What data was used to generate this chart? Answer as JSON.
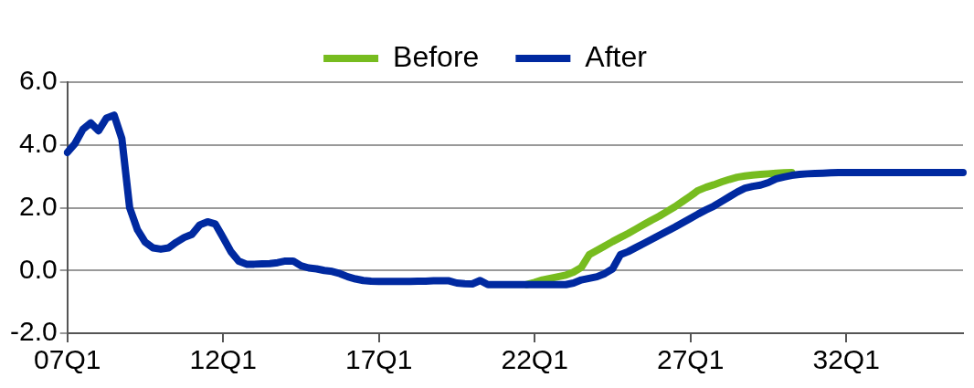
{
  "chart_data": {
    "type": "line",
    "categories": [
      "07Q1",
      null,
      null,
      null,
      null,
      null,
      null,
      null,
      null,
      null,
      null,
      null,
      null,
      null,
      null,
      null,
      null,
      null,
      null,
      null,
      "12Q1",
      null,
      null,
      null,
      null,
      null,
      null,
      null,
      null,
      null,
      null,
      null,
      null,
      null,
      null,
      null,
      null,
      null,
      null,
      null,
      "17Q1",
      null,
      null,
      null,
      null,
      null,
      null,
      null,
      null,
      null,
      null,
      null,
      null,
      null,
      null,
      null,
      null,
      null,
      null,
      null,
      "22Q1",
      null,
      null,
      null,
      null,
      null,
      null,
      null,
      null,
      null,
      null,
      null,
      null,
      null,
      null,
      null,
      null,
      null,
      null,
      null,
      "27Q1",
      null,
      null,
      null,
      null,
      null,
      null,
      null,
      null,
      null,
      null,
      null,
      null,
      null,
      null,
      null,
      null,
      null,
      null,
      null,
      "32Q1",
      null,
      null,
      null,
      null,
      null,
      null,
      null,
      null,
      null,
      null,
      null,
      null,
      null,
      null,
      null
    ],
    "series": [
      {
        "name": "Before",
        "color": "#77bc1f",
        "values": [
          null,
          null,
          null,
          null,
          null,
          null,
          null,
          null,
          null,
          null,
          null,
          null,
          null,
          null,
          null,
          null,
          null,
          null,
          null,
          null,
          null,
          null,
          null,
          null,
          null,
          null,
          null,
          null,
          null,
          null,
          null,
          null,
          null,
          null,
          null,
          null,
          null,
          null,
          null,
          null,
          null,
          null,
          null,
          null,
          null,
          null,
          null,
          null,
          null,
          null,
          null,
          null,
          null,
          null,
          null,
          null,
          null,
          null,
          null,
          -0.45,
          -0.38,
          -0.3,
          -0.25,
          -0.2,
          -0.15,
          -0.05,
          0.1,
          0.5,
          0.64,
          0.78,
          0.92,
          1.05,
          1.18,
          1.32,
          1.46,
          1.6,
          1.73,
          1.88,
          2.03,
          2.2,
          2.37,
          2.55,
          2.65,
          2.73,
          2.82,
          2.9,
          2.97,
          3.01,
          3.04,
          3.06,
          3.08,
          3.1,
          3.11,
          3.12,
          null,
          null,
          null,
          null,
          null,
          null,
          null,
          null,
          null,
          null,
          null,
          null,
          null,
          null,
          null,
          null,
          null,
          null,
          null,
          null,
          null,
          null
        ]
      },
      {
        "name": "After",
        "color": "#0029a0",
        "values": [
          3.76,
          4.05,
          4.5,
          4.7,
          4.45,
          4.85,
          4.95,
          4.2,
          2.0,
          1.3,
          0.9,
          0.72,
          0.68,
          0.72,
          0.9,
          1.05,
          1.15,
          1.45,
          1.55,
          1.48,
          1.05,
          0.6,
          0.3,
          0.2,
          0.2,
          0.21,
          0.22,
          0.25,
          0.3,
          0.3,
          0.15,
          0.08,
          0.05,
          0.0,
          -0.03,
          -0.1,
          -0.2,
          -0.27,
          -0.32,
          -0.34,
          -0.35,
          -0.35,
          -0.35,
          -0.35,
          -0.35,
          -0.34,
          -0.34,
          -0.33,
          -0.33,
          -0.33,
          -0.4,
          -0.42,
          -0.43,
          -0.32,
          -0.45,
          -0.45,
          -0.45,
          -0.45,
          -0.45,
          -0.45,
          -0.45,
          -0.45,
          -0.45,
          -0.45,
          -0.45,
          -0.4,
          -0.3,
          -0.25,
          -0.2,
          -0.1,
          0.05,
          0.5,
          0.6,
          0.73,
          0.86,
          0.99,
          1.12,
          1.25,
          1.38,
          1.52,
          1.66,
          1.8,
          1.93,
          2.05,
          2.2,
          2.35,
          2.5,
          2.62,
          2.68,
          2.72,
          2.8,
          2.92,
          2.98,
          3.03,
          3.06,
          3.08,
          3.09,
          3.1,
          3.11,
          3.12,
          3.12,
          3.12,
          3.12,
          3.12,
          3.12,
          3.12,
          3.12,
          3.12,
          3.12,
          3.12,
          3.12,
          3.12,
          3.12,
          3.12,
          3.12,
          3.12
        ]
      }
    ],
    "ylim": [
      -2,
      6
    ],
    "yticks": [
      {
        "value": -2,
        "label": "-2.0"
      },
      {
        "value": 0,
        "label": "0.0"
      },
      {
        "value": 2,
        "label": "2.0"
      },
      {
        "value": 4,
        "label": "4.0"
      },
      {
        "value": 6,
        "label": "6.0"
      }
    ],
    "grid": "y",
    "legend": "top",
    "marker": "none",
    "line_style": "solid"
  }
}
